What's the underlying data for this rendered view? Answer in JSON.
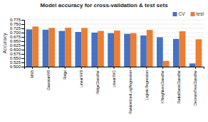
{
  "chart_data": {
    "type": "bar",
    "title": "Model accuracy for cross-validation & test sets",
    "ylabel": "Accuracy",
    "categories": [
      "MNB",
      "GaussianNB",
      "Ridge",
      "LinearSVB",
      "RidgeClassifier",
      "LinearSVC",
      "RandomizedLogRegression",
      "LogisticRegression",
      "KNeighborsClassifier",
      "RadialBasisClassifier",
      "DecisionTreeClassifier"
    ],
    "series": [
      {
        "name": "CV",
        "color": "#4472c4",
        "values": [
          0.719,
          0.717,
          0.71,
          0.704,
          0.7,
          0.697,
          0.693,
          0.683,
          0.673,
          0.663,
          0.519
        ]
      },
      {
        "name": "test",
        "color": "#ed7d31",
        "values": [
          0.736,
          0.728,
          0.729,
          0.728,
          0.71,
          0.712,
          0.697,
          0.716,
          0.534,
          0.708,
          0.661
        ]
      }
    ],
    "ylim": [
      0.5,
      0.775
    ],
    "yticks": [
      {
        "value": 0.5,
        "label": "0.500"
      },
      0.525,
      {
        "value": 0.55,
        "label": "0.550"
      },
      0.575,
      {
        "value": 0.6,
        "label": "0.600"
      },
      0.625,
      {
        "value": 0.65,
        "label": "0.650"
      },
      0.675,
      {
        "value": 0.7,
        "label": "0.700"
      },
      0.725,
      {
        "value": 0.75,
        "label": "0.750"
      },
      0.775
    ],
    "grid": true,
    "legend": "upper right"
  }
}
